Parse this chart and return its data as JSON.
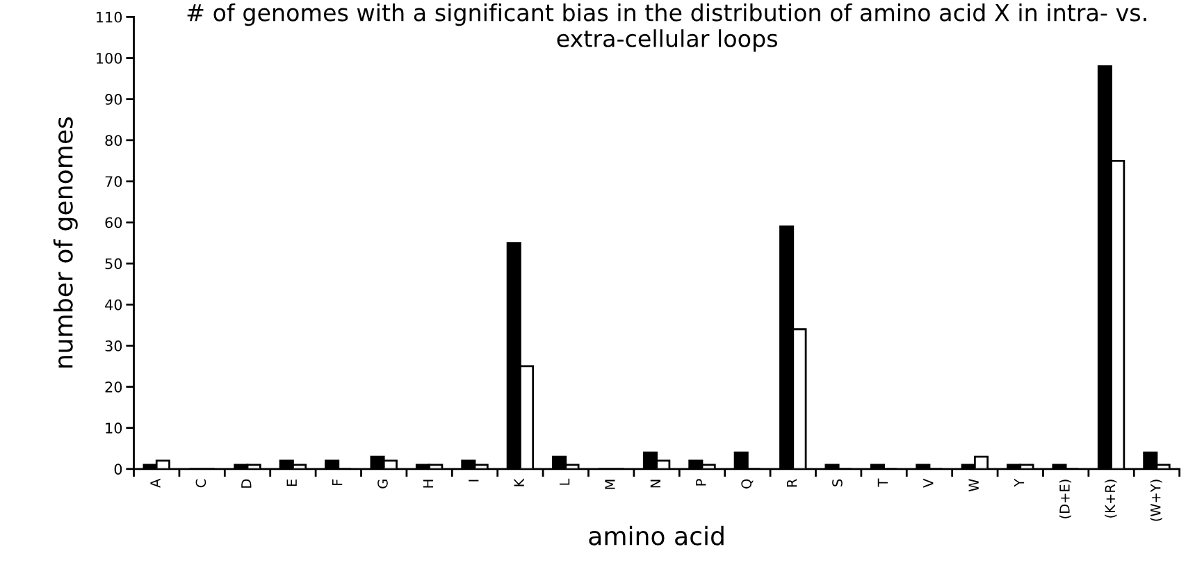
{
  "chart_data": {
    "type": "bar",
    "title": "# of genomes with a significant bias in the distribution of amino acid X in intra- vs. extra-cellular loops",
    "xlabel": "amino acid",
    "ylabel": "number of genomes",
    "categories": [
      "A",
      "C",
      "D",
      "E",
      "F",
      "G",
      "H",
      "I",
      "K",
      "L",
      "M",
      "N",
      "P",
      "Q",
      "R",
      "S",
      "T",
      "V",
      "W",
      "Y",
      "(D+E)",
      "(K+R)",
      "(W+Y)"
    ],
    "series": [
      {
        "color": "#000000",
        "values": [
          1,
          0,
          1,
          2,
          2,
          3,
          1,
          2,
          55,
          3,
          0,
          4,
          2,
          4,
          59,
          1,
          1,
          1,
          1,
          1,
          1,
          98,
          4
        ]
      },
      {
        "color": "#ffffff",
        "values": [
          2,
          0,
          1,
          1,
          0,
          2,
          1,
          1,
          25,
          1,
          0,
          2,
          1,
          0,
          34,
          0,
          0,
          0,
          3,
          1,
          0,
          75,
          1
        ]
      }
    ],
    "ylim": [
      0,
      110
    ],
    "yticks": [
      0,
      10,
      20,
      30,
      40,
      50,
      60,
      70,
      80,
      90,
      100,
      110
    ],
    "grid": false
  }
}
